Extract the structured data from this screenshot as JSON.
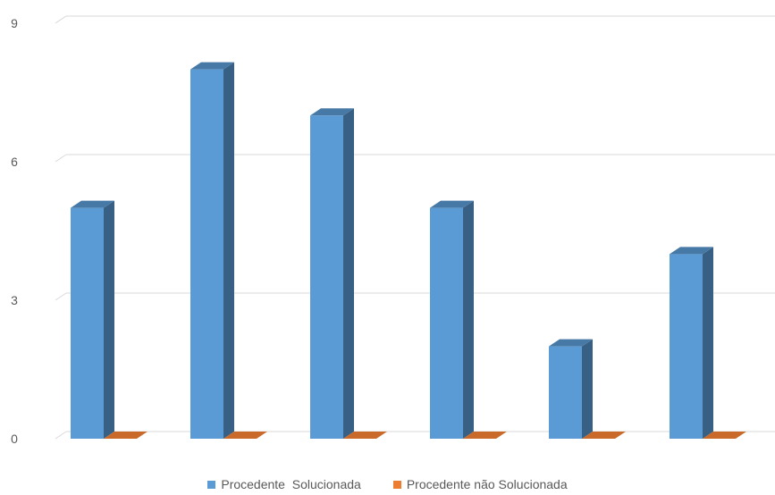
{
  "chart_data": {
    "type": "bar",
    "categories": [
      "",
      "",
      "",
      "",
      "",
      ""
    ],
    "series": [
      {
        "name": "Procedente  Solucionada",
        "values": [
          5,
          8,
          7,
          5,
          2,
          4
        ],
        "color": "#5B9BD5"
      },
      {
        "name": "Procedente não Solucionada",
        "values": [
          0,
          0,
          0,
          0,
          0,
          0
        ],
        "color": "#ED7D31"
      }
    ],
    "ylim": [
      0,
      9
    ],
    "yticks": [
      0,
      3,
      6,
      9
    ],
    "grid": true,
    "legend": "bottom",
    "title": "",
    "xlabel": "",
    "ylabel": ""
  }
}
